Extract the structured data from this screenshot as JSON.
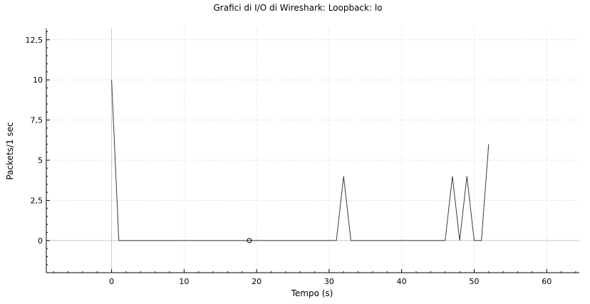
{
  "chart_data": {
    "type": "line",
    "title": "Grafici di I/O di Wireshark: Loopback: lo",
    "xlabel": "Tempo (s)",
    "ylabel": "Packets/1 sec",
    "xlim": [
      -9,
      64.5
    ],
    "ylim": [
      -2,
      13.2
    ],
    "x_ticks": [
      0,
      10,
      20,
      30,
      40,
      50,
      60
    ],
    "x_tick_labels": [
      "0",
      "10",
      "20",
      "30",
      "40",
      "50",
      "60"
    ],
    "y_ticks": [
      0,
      2.5,
      5,
      7.5,
      10,
      12.5
    ],
    "y_tick_labels": [
      "0",
      "2,5",
      "5",
      "7,5",
      "10",
      "12,5"
    ],
    "grid": true,
    "series": [
      {
        "color": "#3a3a3a",
        "x": [
          0,
          1,
          2,
          3,
          4,
          5,
          6,
          7,
          8,
          9,
          10,
          11,
          12,
          13,
          14,
          15,
          16,
          17,
          18,
          19,
          20,
          21,
          22,
          23,
          24,
          25,
          26,
          27,
          28,
          29,
          30,
          31,
          32,
          33,
          34,
          35,
          36,
          37,
          38,
          39,
          40,
          41,
          42,
          43,
          44,
          45,
          46,
          47,
          48,
          49,
          50,
          51,
          52
        ],
        "y": [
          10,
          0,
          0,
          0,
          0,
          0,
          0,
          0,
          0,
          0,
          0,
          0,
          0,
          0,
          0,
          0,
          0,
          0,
          0,
          0,
          0,
          0,
          0,
          0,
          0,
          0,
          0,
          0,
          0,
          0,
          0,
          0,
          4,
          0,
          0,
          0,
          0,
          0,
          0,
          0,
          0,
          0,
          0,
          0,
          0,
          0,
          0,
          4,
          0,
          4,
          0,
          0,
          6
        ]
      }
    ],
    "marker": {
      "x": 19,
      "y": 0
    }
  }
}
